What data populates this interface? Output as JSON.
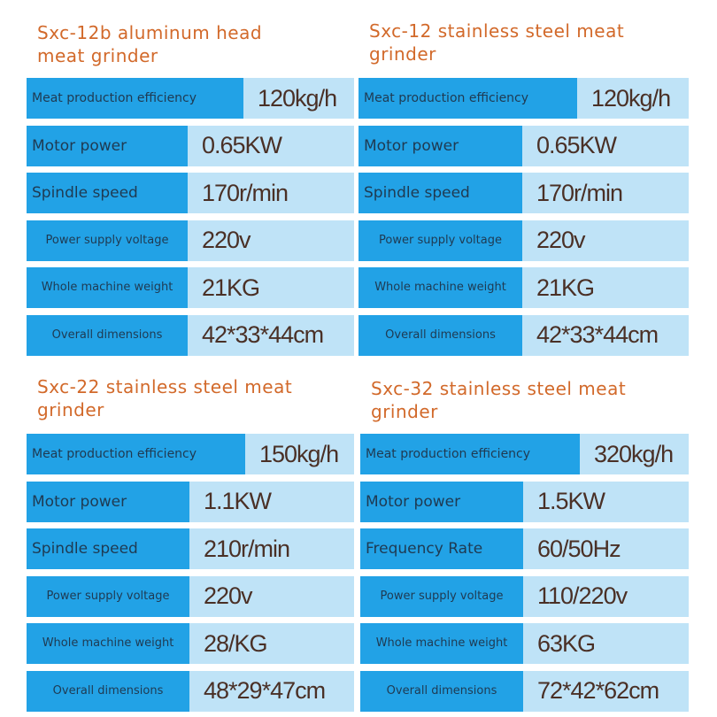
{
  "panels": [
    {
      "title": "Sxc-12b aluminum head meat grinder",
      "rows": [
        {
          "label": "Meat production efficiency",
          "value": "120kg/h"
        },
        {
          "label": "Motor power",
          "value": "0.65KW"
        },
        {
          "label": "Spindle speed",
          "value": "170r/min"
        },
        {
          "label": "Power supply voltage",
          "value": "220v"
        },
        {
          "label": "Whole machine weight",
          "value": "21KG"
        },
        {
          "label": "Overall dimensions",
          "value": "42*33*44cm"
        }
      ]
    },
    {
      "title": "Sxc-12 stainless steel meat grinder",
      "rows": [
        {
          "label": "Meat production efficiency",
          "value": "120kg/h"
        },
        {
          "label": "Motor power",
          "value": "0.65KW"
        },
        {
          "label": "Spindle speed",
          "value": "170r/min"
        },
        {
          "label": "Power supply voltage",
          "value": "220v"
        },
        {
          "label": "Whole machine weight",
          "value": "21KG"
        },
        {
          "label": "Overall dimensions",
          "value": "42*33*44cm"
        }
      ]
    },
    {
      "title": "Sxc-22 stainless steel meat grinder",
      "rows": [
        {
          "label": "Meat production efficiency",
          "value": "150kg/h"
        },
        {
          "label": "Motor power",
          "value": "1.1KW"
        },
        {
          "label": "Spindle speed",
          "value": "210r/min"
        },
        {
          "label": "Power supply voltage",
          "value": "220v"
        },
        {
          "label": "Whole machine weight",
          "value": "28/KG"
        },
        {
          "label": "Overall dimensions",
          "value": "48*29*47cm"
        }
      ]
    },
    {
      "title": "Sxc-32 stainless steel meat grinder",
      "rows": [
        {
          "label": "Meat production efficiency",
          "value": "320kg/h"
        },
        {
          "label": "Motor power",
          "value": "1.5KW"
        },
        {
          "label": "Frequency Rate",
          "value": "60/50Hz"
        },
        {
          "label": "Power supply voltage",
          "value": "110/220v"
        },
        {
          "label": "Whole machine weight",
          "value": "63KG"
        },
        {
          "label": "Overall dimensions",
          "value": "72*42*62cm"
        }
      ]
    }
  ]
}
